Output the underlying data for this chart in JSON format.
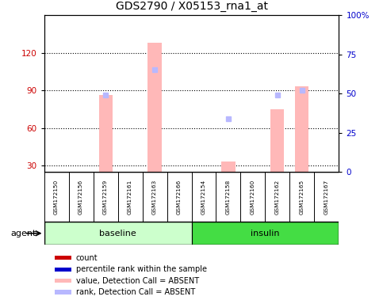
{
  "title": "GDS2790 / X05153_rna1_at",
  "samples": [
    "GSM172150",
    "GSM172156",
    "GSM172159",
    "GSM172161",
    "GSM172163",
    "GSM172166",
    "GSM172154",
    "GSM172158",
    "GSM172160",
    "GSM172162",
    "GSM172165",
    "GSM172167"
  ],
  "groups": [
    {
      "label": "baseline",
      "color": "#ccffcc",
      "start": 0,
      "end": 6
    },
    {
      "label": "insulin",
      "color": "#44dd44",
      "start": 6,
      "end": 12
    }
  ],
  "ylim_left": [
    25,
    150
  ],
  "yticks_left": [
    30,
    60,
    90,
    120
  ],
  "ylim_right": [
    0,
    100
  ],
  "yticks_right": [
    0,
    25,
    50,
    75,
    100
  ],
  "absent_bars": {
    "indices": [
      2,
      4,
      7,
      9,
      10
    ],
    "values": [
      86,
      128,
      33,
      75,
      93
    ]
  },
  "absent_ranks": {
    "indices": [
      2,
      4,
      7,
      9,
      10
    ],
    "values": [
      49,
      65,
      34,
      49,
      52
    ]
  },
  "absent_bar_color": "#ffb8b8",
  "absent_rank_color": "#b8b8ff",
  "legend_colors": [
    "#cc0000",
    "#0000cc",
    "#ffb8b8",
    "#b8b8ff"
  ],
  "legend_labels": [
    "count",
    "percentile rank within the sample",
    "value, Detection Call = ABSENT",
    "rank, Detection Call = ABSENT"
  ],
  "bar_width": 0.55,
  "background_color": "#ffffff"
}
